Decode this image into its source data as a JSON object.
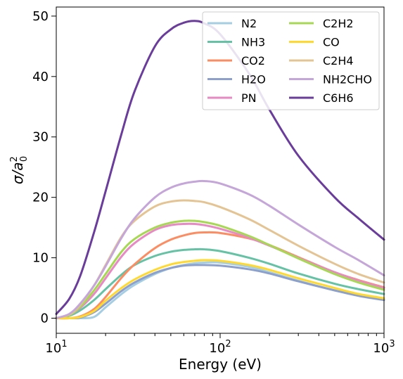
{
  "chart_data": {
    "type": "line",
    "title": "",
    "xlabel": "Energy (eV)",
    "ylabel": "σ/a0²",
    "ylabel_base": "σ/a",
    "ylabel_sub": "0",
    "ylabel_sup": "2",
    "xscale": "log",
    "xlim": [
      10,
      1000
    ],
    "ylim": [
      -2.5,
      51.5
    ],
    "x_ticks": [
      {
        "value": 10,
        "base": "10",
        "exp": "1"
      },
      {
        "value": 100,
        "base": "10",
        "exp": "2"
      },
      {
        "value": 1000,
        "base": "10",
        "exp": "3"
      }
    ],
    "y_ticks": [
      0,
      10,
      20,
      30,
      40,
      50
    ],
    "legend_position": "top-right",
    "legend_columns": 2,
    "x": [
      10,
      12,
      14,
      17,
      20,
      25,
      30,
      40,
      50,
      60,
      70,
      80,
      100,
      150,
      200,
      300,
      500,
      700,
      1000
    ],
    "series": [
      {
        "name": "N2",
        "color": "#a6cee3",
        "values": [
          0,
          0,
          0,
          0.2,
          1.8,
          4.0,
          5.5,
          7.3,
          8.3,
          8.8,
          9.1,
          9.2,
          9.2,
          8.5,
          7.6,
          6.2,
          4.6,
          3.8,
          3.1
        ]
      },
      {
        "name": "NH3",
        "color": "#66c2a5",
        "values": [
          0,
          0.4,
          1.3,
          3.0,
          4.8,
          7.2,
          8.8,
          10.3,
          11.0,
          11.3,
          11.4,
          11.4,
          11.1,
          10.0,
          9.0,
          7.4,
          5.7,
          4.8,
          4.0
        ]
      },
      {
        "name": "CO2",
        "color": "#fc8d62",
        "values": [
          0,
          0,
          0.3,
          1.5,
          3.5,
          6.7,
          8.9,
          11.6,
          13.0,
          13.7,
          14.1,
          14.2,
          14.1,
          13.2,
          12.1,
          10.1,
          7.6,
          6.3,
          5.1
        ]
      },
      {
        "name": "H2O",
        "color": "#8da0cb",
        "values": [
          0,
          0,
          0.1,
          1.0,
          2.4,
          4.5,
          5.9,
          7.5,
          8.3,
          8.7,
          8.8,
          8.8,
          8.7,
          8.1,
          7.4,
          6.1,
          4.6,
          3.7,
          3.0
        ]
      },
      {
        "name": "PN",
        "color": "#e78ac3",
        "values": [
          0,
          0.5,
          1.7,
          4.0,
          6.6,
          10.2,
          12.4,
          14.6,
          15.4,
          15.6,
          15.6,
          15.4,
          14.8,
          13.3,
          12.0,
          10.0,
          7.6,
          6.2,
          5.0
        ]
      },
      {
        "name": "C2H2",
        "color": "#a6d854",
        "values": [
          0,
          0.5,
          1.9,
          4.6,
          7.3,
          11.0,
          13.1,
          15.0,
          15.8,
          16.1,
          16.1,
          15.9,
          15.3,
          13.6,
          12.1,
          9.9,
          7.3,
          5.9,
          4.7
        ]
      },
      {
        "name": "CO",
        "color": "#ffd92f",
        "values": [
          0,
          0,
          0.2,
          1.2,
          2.9,
          5.0,
          6.4,
          8.0,
          8.9,
          9.3,
          9.5,
          9.6,
          9.5,
          8.8,
          8.0,
          6.6,
          5.0,
          4.0,
          3.3
        ]
      },
      {
        "name": "C2H4",
        "color": "#e5c494",
        "values": [
          0,
          0.6,
          2.2,
          5.4,
          8.8,
          13.5,
          16.1,
          18.5,
          19.3,
          19.5,
          19.4,
          19.2,
          18.4,
          16.4,
          14.6,
          12.0,
          9.0,
          7.3,
          5.9
        ]
      },
      {
        "name": "NH2CHO",
        "color": "#c5a6d8",
        "values": [
          0,
          0.7,
          2.4,
          5.4,
          8.6,
          13.3,
          16.5,
          20.0,
          21.6,
          22.3,
          22.6,
          22.7,
          22.3,
          20.5,
          18.6,
          15.5,
          11.8,
          9.6,
          7.1
        ]
      },
      {
        "name": "C6H6",
        "color": "#6a3d9a",
        "values": [
          0.7,
          3.2,
          7.0,
          14.2,
          21.0,
          30.5,
          37.5,
          45.0,
          47.8,
          48.9,
          49.2,
          48.8,
          47.0,
          40.5,
          34.5,
          26.9,
          20.0,
          16.5,
          13.0
        ]
      }
    ]
  }
}
